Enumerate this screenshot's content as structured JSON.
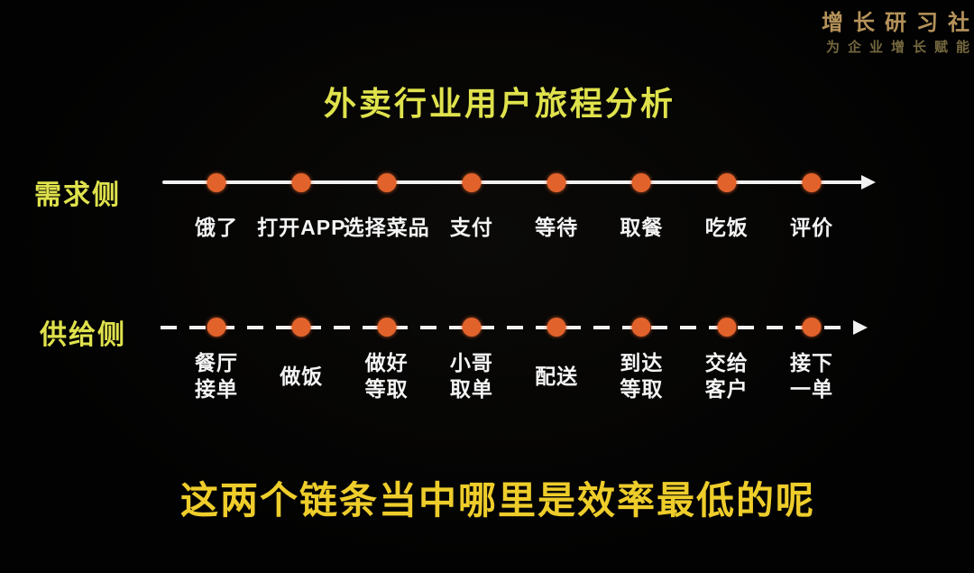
{
  "brand": {
    "name": "增长研习社",
    "tagline": "为企业增长赋能"
  },
  "slide": {
    "title": "外卖行业用户旅程分析",
    "question": "这两个链条当中哪里是效率最低的呢"
  },
  "timelines": {
    "demand": {
      "label": "需求侧",
      "line_style": "solid-arrow",
      "steps": [
        "饿了",
        "打开APP",
        "选择菜品",
        "支付",
        "等待",
        "取餐",
        "吃饭",
        "评价"
      ]
    },
    "supply": {
      "label": "供给侧",
      "line_style": "dashed-arrow",
      "steps": [
        "餐厅\n接单",
        "做饭",
        "做好\n等取",
        "小哥\n取单",
        "配送",
        "到达\n等取",
        "交给\n客户",
        "接下\n一单"
      ]
    }
  },
  "colors": {
    "accent_yellow": "#dfe24c",
    "headline_gold": "#eecd2b",
    "dot_orange": "#e2622b",
    "line_white": "#f2f2f2",
    "brand_gold": "#b6935a",
    "brand_tagline": "#75683f",
    "background": "#020202"
  }
}
